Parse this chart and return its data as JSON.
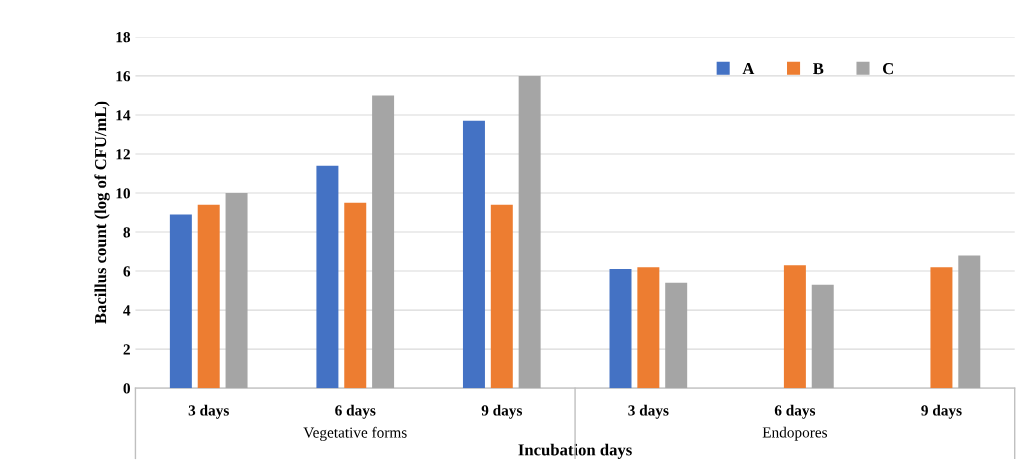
{
  "chart_data": {
    "type": "bar",
    "xlabel": "Incubation days",
    "ylabel": "Bacillus count (log of CFU/mL)",
    "categories": [
      "3 days",
      "6 days",
      "9 days",
      "3 days",
      "6 days",
      "9 days"
    ],
    "series": [
      {
        "name": "A",
        "color": "#4472c4",
        "values": [
          8.9,
          11.4,
          13.7,
          6.1,
          null,
          null
        ]
      },
      {
        "name": "B",
        "color": "#ed7d31",
        "values": [
          9.4,
          9.5,
          9.4,
          6.2,
          6.3,
          6.2
        ]
      },
      {
        "name": "C",
        "color": "#a5a5a5",
        "values": [
          10,
          15,
          16,
          5.4,
          5.3,
          6.8
        ]
      }
    ],
    "annotations": [
      "Vegetative forms",
      "Endopores"
    ],
    "ylim": [
      0,
      18
    ],
    "yticks": [
      0,
      2,
      4,
      6,
      8,
      10,
      12,
      14,
      16,
      18
    ],
    "grid": "y",
    "legend": "top right"
  }
}
